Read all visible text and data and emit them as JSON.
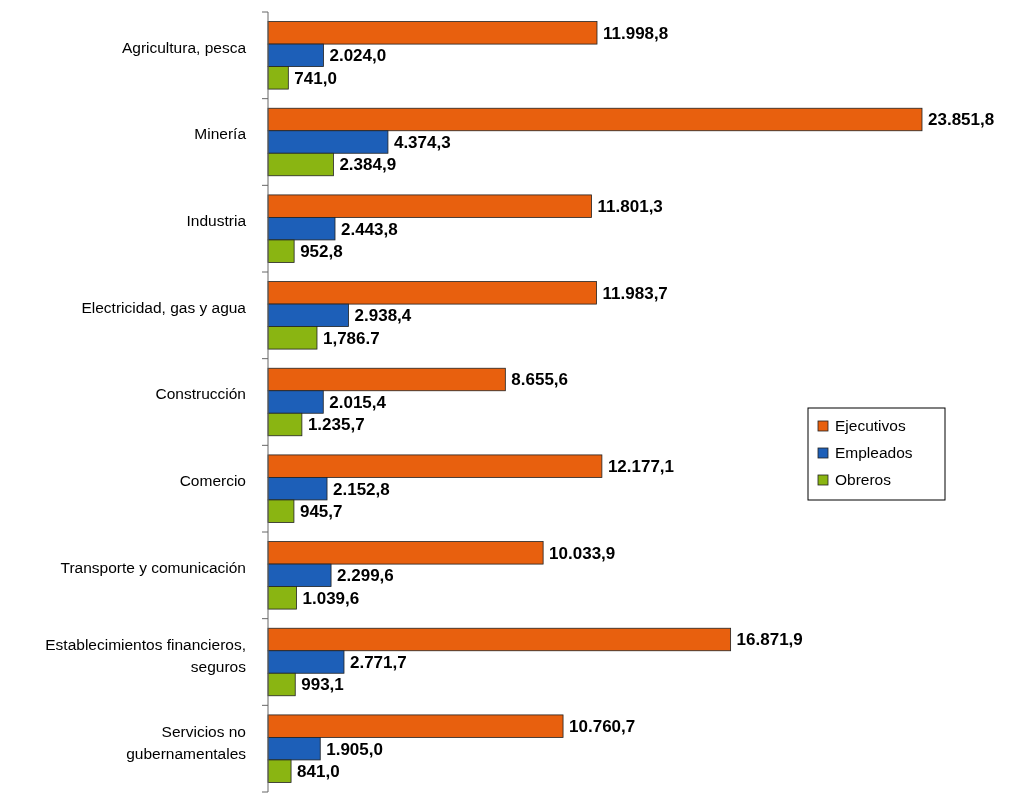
{
  "chart_data": {
    "type": "bar",
    "orientation": "horizontal",
    "categories": [
      "Agricultura, pesca",
      "Minería",
      "Industria",
      "Electricidad, gas y agua",
      "Construcción",
      "Comercio",
      "Transporte y comunicación",
      "Establecimientos financieros,\nseguros",
      "Servicios no\ngubernamentales"
    ],
    "series": [
      {
        "name": "Ejecutivos",
        "color": "#e8600e",
        "values": [
          11998.8,
          23851.8,
          11801.3,
          11983.7,
          8655.6,
          12177.1,
          10033.9,
          16871.9,
          10760.7
        ],
        "value_labels": [
          "11.998,8",
          "23.851,8",
          "11.801,3",
          "11.983,7",
          "8.655,6",
          "12.177,1",
          "10.033,9",
          "16.871,9",
          "10.760,7"
        ]
      },
      {
        "name": "Empleados",
        "color": "#1d5fb8",
        "values": [
          2024.0,
          4374.3,
          2443.8,
          2938.4,
          2015.4,
          2152.8,
          2299.6,
          2771.7,
          1905.0
        ],
        "value_labels": [
          "2.024,0",
          "4.374,3",
          "2.443,8",
          "2.938,4",
          "2.015,4",
          "2.152,8",
          "2.299,6",
          "2.771,7",
          "1.905,0"
        ]
      },
      {
        "name": "Obreros",
        "color": "#8ab512",
        "values": [
          741.0,
          2384.9,
          952.8,
          1786.7,
          1235.7,
          945.7,
          1039.6,
          993.1,
          841.0
        ],
        "value_labels": [
          "741,0",
          "2.384,9",
          "952,8",
          "1,786.7",
          "1.235,7",
          "945,7",
          "1.039,6",
          "993,1",
          "841,0"
        ]
      }
    ],
    "legend": "right"
  }
}
